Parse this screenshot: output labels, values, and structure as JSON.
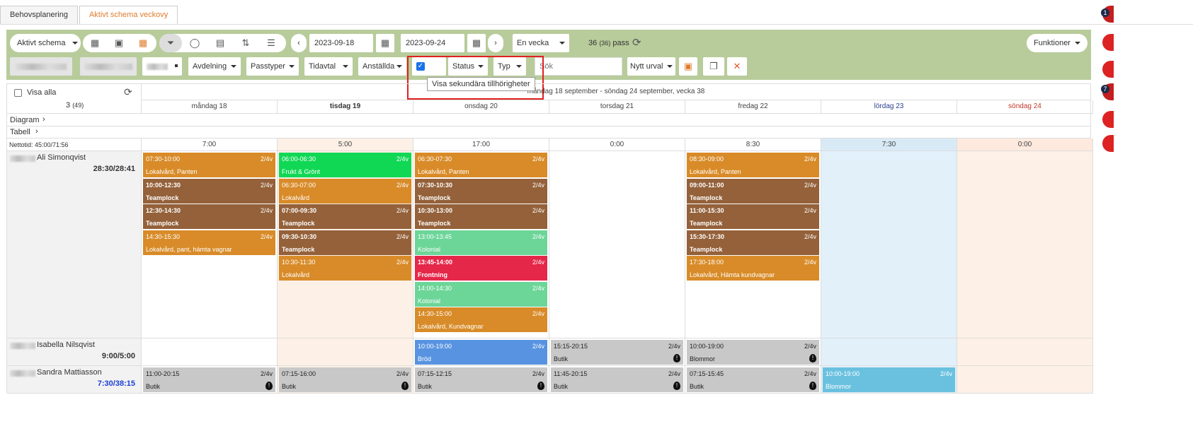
{
  "tabs": [
    "Behovsplanering",
    "Aktivt schema veckovy"
  ],
  "toolbar": {
    "schema_select": "Aktivt schema",
    "date_from": "2023-09-18",
    "date_to": "2023-09-24",
    "period_select": "En vecka",
    "pass_count": "36",
    "pass_count_sub": "(36)",
    "pass_label": "pass",
    "functions": "Funktioner",
    "filters": [
      "Avdelning",
      "Passtyper",
      "Tidavtal",
      "Anställda"
    ],
    "status": "Status",
    "typ": "Typ",
    "search_placeholder": "Sök",
    "nytt_urval": "Nytt urval",
    "tooltip": "Visa sekundära tillhörigheter"
  },
  "grid": {
    "show_all": "Visa alla",
    "count": "3",
    "count_sub": "(49)",
    "week_title": "måndag 18 september - söndag 24 september, vecka 38",
    "days": [
      "måndag 18",
      "tisdag 19",
      "onsdag 20",
      "torsdag 21",
      "fredag 22",
      "lördag 23",
      "söndag 24"
    ],
    "diagram": "Diagram",
    "tabell": "Tabell",
    "nettotid_label": "Nettotid: 45:00/71:56",
    "day_totals": [
      "7:00",
      "5:00",
      "17:00",
      "0:00",
      "8:30",
      "7:30",
      "0:00"
    ],
    "employees": [
      {
        "name": "Ali Simonqvist",
        "hours": "28:30/28:41"
      },
      {
        "name": "Isabella Nilsqvist",
        "hours": "9:00/5:00"
      },
      {
        "name": "Sandra Mattiasson",
        "hours": "7:30/38:15"
      }
    ],
    "shifts": [
      {
        "emp": 0,
        "day": 0,
        "slot": 0,
        "time": "07:30-10:00",
        "label": "Lokalvård, Panten",
        "code": "2/4v",
        "color": "#d88b28"
      },
      {
        "emp": 0,
        "day": 0,
        "slot": 1,
        "time": "10:00-12:30",
        "label": "Teamplock",
        "code": "2/4v",
        "color": "#94613a"
      },
      {
        "emp": 0,
        "day": 0,
        "slot": 2,
        "time": "12:30-14:30",
        "label": "Teamplock",
        "code": "2/4v",
        "color": "#94613a"
      },
      {
        "emp": 0,
        "day": 0,
        "slot": 3,
        "time": "14:30-15:30",
        "label": "Lokalvård, pant, hämta vagnar",
        "code": "2/4v",
        "color": "#d88b28"
      },
      {
        "emp": 0,
        "day": 1,
        "slot": 0,
        "time": "06:00-06:30",
        "label": "Frukt & Grönt",
        "code": "2/4v",
        "color": "#10d855"
      },
      {
        "emp": 0,
        "day": 1,
        "slot": 1,
        "time": "06:30-07:00",
        "label": "Lokalvård",
        "code": "2/4v",
        "color": "#d88b28"
      },
      {
        "emp": 0,
        "day": 1,
        "slot": 2,
        "time": "07:00-09:30",
        "label": "Teamplock",
        "code": "2/4v",
        "color": "#94613a"
      },
      {
        "emp": 0,
        "day": 1,
        "slot": 3,
        "time": "09:30-10:30",
        "label": "Teamplock",
        "code": "2/4v",
        "color": "#94613a"
      },
      {
        "emp": 0,
        "day": 1,
        "slot": 4,
        "time": "10:30-11:30",
        "label": "Lokalvård",
        "code": "2/4v",
        "color": "#d88b28"
      },
      {
        "emp": 0,
        "day": 2,
        "slot": 0,
        "time": "06:30-07:30",
        "label": "Lokalvård, Panten",
        "code": "2/4v",
        "color": "#d88b28"
      },
      {
        "emp": 0,
        "day": 2,
        "slot": 1,
        "time": "07:30-10:30",
        "label": "Teamplock",
        "code": "2/4v",
        "color": "#94613a"
      },
      {
        "emp": 0,
        "day": 2,
        "slot": 2,
        "time": "10:30-13:00",
        "label": "Teamplock",
        "code": "2/4v",
        "color": "#94613a"
      },
      {
        "emp": 0,
        "day": 2,
        "slot": 3,
        "time": "13:00-13:45",
        "label": "Kolonial",
        "code": "2/4v",
        "color": "#6cd598"
      },
      {
        "emp": 0,
        "day": 2,
        "slot": 4,
        "time": "13:45-14:00",
        "label": "Frontning",
        "code": "2/4v",
        "color": "#e5274a"
      },
      {
        "emp": 0,
        "day": 2,
        "slot": 5,
        "time": "14:00-14:30",
        "label": "Kolonial",
        "code": "2/4v",
        "color": "#6cd598"
      },
      {
        "emp": 0,
        "day": 2,
        "slot": 6,
        "time": "14:30-15:00",
        "label": "Lokalvård, Kundvagnar",
        "code": "2/4v",
        "color": "#d88b28"
      },
      {
        "emp": 0,
        "day": 4,
        "slot": 0,
        "time": "08:30-09:00",
        "label": "Lokalvård, Panten",
        "code": "2/4v",
        "color": "#d88b28"
      },
      {
        "emp": 0,
        "day": 4,
        "slot": 1,
        "time": "09:00-11:00",
        "label": "Teamplock",
        "code": "2/4v",
        "color": "#94613a"
      },
      {
        "emp": 0,
        "day": 4,
        "slot": 2,
        "time": "11:00-15:30",
        "label": "Teamplock",
        "code": "2/4v",
        "color": "#94613a"
      },
      {
        "emp": 0,
        "day": 4,
        "slot": 3,
        "time": "15:30-17:30",
        "label": "Teamplock",
        "code": "2/4v",
        "color": "#94613a"
      },
      {
        "emp": 0,
        "day": 4,
        "slot": 4,
        "time": "17:30-18:00",
        "label": "Lokalvård, Hämta kundvagnar",
        "code": "2/4v",
        "color": "#d88b28"
      },
      {
        "emp": 1,
        "day": 2,
        "slot": 0,
        "time": "10:00-19:00",
        "label": "Bröd",
        "code": "2/4v",
        "color": "#5793e0"
      },
      {
        "emp": 1,
        "day": 3,
        "slot": 0,
        "time": "15:15-20:15",
        "label": "Butik",
        "code": "2/4v",
        "color": "#c8c8c8",
        "warn": true
      },
      {
        "emp": 1,
        "day": 4,
        "slot": 0,
        "time": "10:00-19:00",
        "label": "Blommor",
        "code": "2/4v",
        "color": "#c8c8c8",
        "warn": true
      },
      {
        "emp": 2,
        "day": 0,
        "slot": 0,
        "time": "11:00-20:15",
        "label": "Butik",
        "code": "2/4v",
        "color": "#c8c8c8",
        "warn": true
      },
      {
        "emp": 2,
        "day": 1,
        "slot": 0,
        "time": "07:15-16:00",
        "label": "Butik",
        "code": "2/4v",
        "color": "#c8c8c8",
        "warn": true
      },
      {
        "emp": 2,
        "day": 2,
        "slot": 0,
        "time": "07:15-12:15",
        "label": "Butik",
        "code": "2/4v",
        "color": "#c8c8c8",
        "warn": true
      },
      {
        "emp": 2,
        "day": 3,
        "slot": 0,
        "time": "11:45-20:15",
        "label": "Butik",
        "code": "2/4v",
        "color": "#c8c8c8",
        "warn": true
      },
      {
        "emp": 2,
        "day": 4,
        "slot": 0,
        "time": "07:15-15:45",
        "label": "Butik",
        "code": "2/4v",
        "color": "#c8c8c8",
        "warn": true
      },
      {
        "emp": 2,
        "day": 5,
        "slot": 0,
        "time": "10:00-19:00",
        "label": "Blommor",
        "code": "2/4v",
        "color": "#6ac1df"
      }
    ]
  },
  "side_badges": [
    "1",
    "7"
  ]
}
